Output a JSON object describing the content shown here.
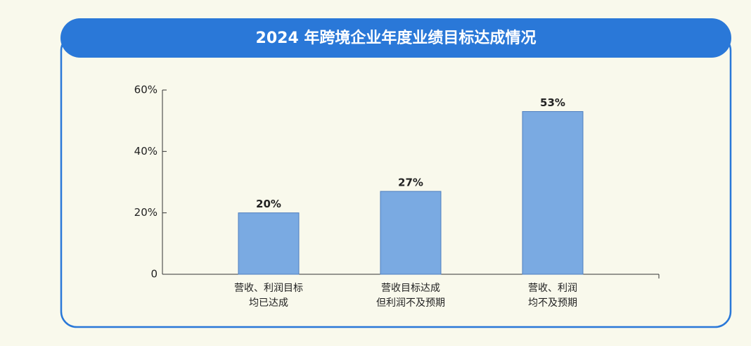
{
  "chart_data": {
    "type": "bar",
    "title": "2024 年跨境企业年度业绩目标达成情况",
    "categories": [
      [
        "营收、利润目标",
        "均已达成"
      ],
      [
        "营收目标达成",
        "但利润不及预期"
      ],
      [
        "营收、利润",
        "均不及预期"
      ]
    ],
    "values": [
      20,
      27,
      53
    ],
    "value_labels": [
      "20%",
      "27%",
      "53%"
    ],
    "color": "#7aaae2",
    "ylim": [
      0,
      60
    ],
    "yticks": [
      0,
      {
        "value": 20,
        "label": "20%"
      },
      {
        "value": 40,
        "label": "40%"
      },
      {
        "value": 60,
        "label": "60%"
      }
    ],
    "grid": false
  }
}
